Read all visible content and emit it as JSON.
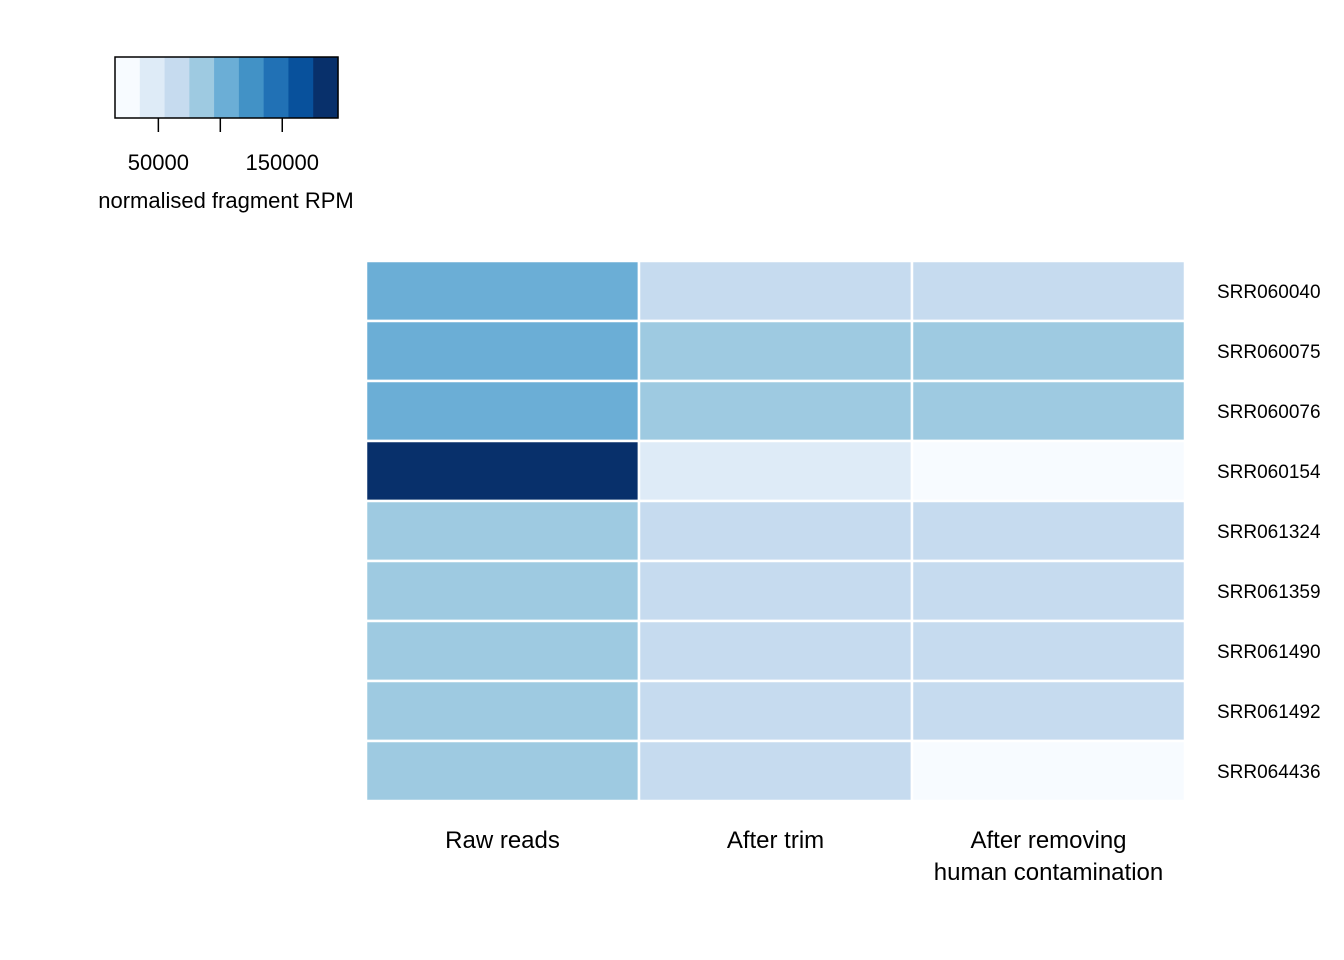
{
  "chart_data": {
    "type": "heatmap",
    "legend": {
      "title": "normalised fragment RPM",
      "tick_labels": [
        "50000",
        "150000"
      ],
      "tick_values": [
        50000,
        100000,
        150000
      ],
      "scale_min": 15000,
      "scale_max": 195000,
      "palette": [
        "#f7fbff",
        "#deebf7",
        "#c6dbef",
        "#9ecae1",
        "#6baed6",
        "#4292c6",
        "#2171b5",
        "#08519c",
        "#08306b"
      ]
    },
    "columns": [
      {
        "lines": [
          "Raw reads"
        ]
      },
      {
        "lines": [
          "After trim"
        ]
      },
      {
        "lines": [
          "After removing",
          "human contamination"
        ]
      }
    ],
    "rows": [
      "SRR060040",
      "SRR060075",
      "SRR060076",
      "SRR060154",
      "SRR061324",
      "SRR061359",
      "SRR061490",
      "SRR061492",
      "SRR064436"
    ],
    "values": [
      [
        110000,
        70000,
        70000
      ],
      [
        110000,
        90000,
        90000
      ],
      [
        110000,
        90000,
        90000
      ],
      [
        190000,
        50000,
        20000
      ],
      [
        90000,
        70000,
        70000
      ],
      [
        90000,
        70000,
        70000
      ],
      [
        90000,
        70000,
        70000
      ],
      [
        90000,
        70000,
        70000
      ],
      [
        90000,
        70000,
        20000
      ]
    ]
  }
}
